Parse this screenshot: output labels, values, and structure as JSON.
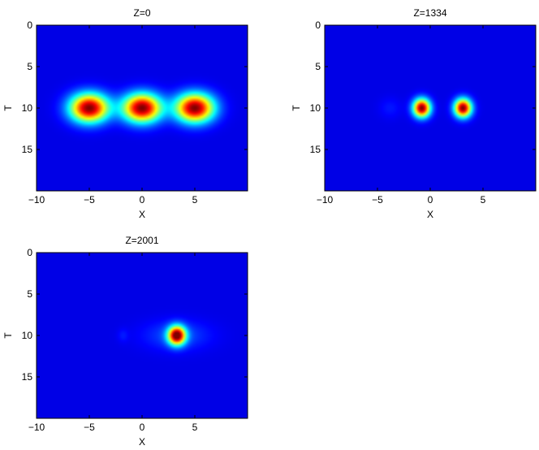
{
  "chart_data": [
    {
      "type": "heatmap",
      "title": "Z=0",
      "xlabel": "X",
      "ylabel": "T",
      "xlim": [
        -10,
        10
      ],
      "ylim": [
        0,
        20
      ],
      "y_reversed": true,
      "xticks": [
        -10,
        -5,
        0,
        5
      ],
      "yticks": [
        0,
        5,
        10,
        15
      ],
      "colormap": "jet",
      "background_color": "#0000c8",
      "peaks": [
        {
          "x": -5,
          "t": 10,
          "intensity": 1.0,
          "sx": 1.8,
          "st": 1.7
        },
        {
          "x": 0,
          "t": 10,
          "intensity": 1.0,
          "sx": 1.8,
          "st": 1.7
        },
        {
          "x": 5,
          "t": 10,
          "intensity": 1.0,
          "sx": 1.8,
          "st": 1.7
        }
      ]
    },
    {
      "type": "heatmap",
      "title": "Z=1334",
      "xlabel": "X",
      "ylabel": "T",
      "xlim": [
        -10,
        10
      ],
      "ylim": [
        0,
        20
      ],
      "y_reversed": true,
      "xticks": [
        -10,
        -5,
        0,
        5
      ],
      "yticks": [
        0,
        5,
        10,
        15
      ],
      "colormap": "jet",
      "background_color": "#0000c8",
      "peaks": [
        {
          "x": -0.8,
          "t": 10,
          "intensity": 1.0,
          "sx": 0.8,
          "st": 1.1
        },
        {
          "x": 3.1,
          "t": 10,
          "intensity": 1.0,
          "sx": 0.8,
          "st": 1.1
        },
        {
          "x": -3.8,
          "t": 10,
          "intensity": 0.05,
          "sx": 1.0,
          "st": 1.2
        }
      ]
    },
    {
      "type": "heatmap",
      "title": "Z=2001",
      "xlabel": "X",
      "ylabel": "T",
      "xlim": [
        -10,
        10
      ],
      "ylim": [
        0,
        20
      ],
      "y_reversed": true,
      "xticks": [
        -10,
        -5,
        0,
        5
      ],
      "yticks": [
        0,
        5,
        10,
        15
      ],
      "colormap": "jet",
      "background_color": "#0000c8",
      "peaks": [
        {
          "x": 3.3,
          "t": 10,
          "intensity": 1.0,
          "sx": 0.8,
          "st": 1.1
        },
        {
          "x": 3.3,
          "t": 10,
          "intensity": 0.12,
          "sx": 3.0,
          "st": 1.7
        },
        {
          "x": -1.8,
          "t": 10,
          "intensity": 0.05,
          "sx": 0.5,
          "st": 0.8
        }
      ]
    }
  ]
}
